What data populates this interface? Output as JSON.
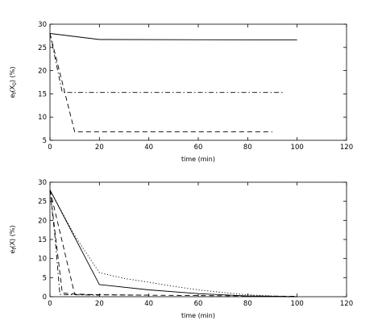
{
  "chart_data": [
    {
      "type": "line",
      "xlabel": "time (min)",
      "ylabel_main": "e",
      "ylabel_sub": "f",
      "ylabel_arg": "(X",
      "ylabel_arg_sub": "0",
      "ylabel_tail": ") (%)",
      "xlim": [
        0,
        120
      ],
      "ylim": [
        5,
        30
      ],
      "xticks": [
        0,
        20,
        40,
        60,
        80,
        100,
        120
      ],
      "yticks": [
        5,
        10,
        15,
        20,
        25,
        30
      ],
      "grid": false,
      "series": [
        {
          "style": "solid",
          "x": [
            0,
            20,
            100
          ],
          "y": [
            28.0,
            26.7,
            26.6
          ]
        },
        {
          "style": "dashdot",
          "x": [
            0,
            5,
            95
          ],
          "y": [
            28.0,
            15.3,
            15.3
          ]
        },
        {
          "style": "dashed",
          "x": [
            0,
            10,
            90
          ],
          "y": [
            28.0,
            6.8,
            6.8
          ]
        }
      ]
    },
    {
      "type": "line",
      "xlabel": "time (min)",
      "ylabel_main": "e",
      "ylabel_sub": "f",
      "ylabel_arg": "(X)",
      "ylabel_arg_sub": "",
      "ylabel_tail": " (%)",
      "xlim": [
        0,
        120
      ],
      "ylim": [
        0,
        30
      ],
      "xticks": [
        0,
        20,
        40,
        60,
        80,
        100,
        120
      ],
      "yticks": [
        0,
        5,
        10,
        15,
        20,
        25,
        30
      ],
      "grid": false,
      "series": [
        {
          "style": "solid",
          "x": [
            0,
            20,
            40,
            60,
            80,
            100
          ],
          "y": [
            28.0,
            3.2,
            1.8,
            0.8,
            0.2,
            0.0
          ]
        },
        {
          "style": "dotted",
          "x": [
            0,
            10,
            20,
            30,
            40,
            50,
            60,
            70,
            80,
            90,
            100
          ],
          "y": [
            28.0,
            16.0,
            6.3,
            4.8,
            3.8,
            2.7,
            1.8,
            1.1,
            0.5,
            0.2,
            0.0
          ]
        },
        {
          "style": "dashed",
          "x": [
            0,
            10,
            20,
            60,
            100
          ],
          "y": [
            28.0,
            0.6,
            0.5,
            0.3,
            0.1
          ]
        },
        {
          "style": "dashed",
          "x": [
            0,
            5,
            10,
            20,
            40
          ],
          "y": [
            28.0,
            1.0,
            0.7,
            0.5,
            0.4
          ]
        },
        {
          "style": "dashdot",
          "x": [
            0,
            2,
            4,
            10,
            20
          ],
          "y": [
            28.0,
            16.0,
            0.6,
            0.5,
            0.4
          ]
        }
      ]
    }
  ]
}
